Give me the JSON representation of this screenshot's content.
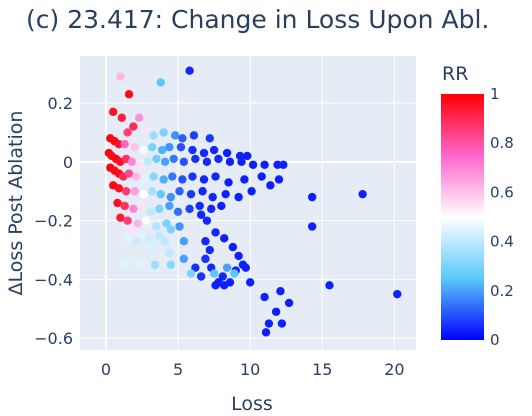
{
  "chart_data": {
    "type": "scatter",
    "title": "(c) 23.417: Change in Loss Upon Abl.",
    "xlabel": "Loss",
    "ylabel": "ΔLoss Post Ablation",
    "xlim": [
      -1.8,
      21.5
    ],
    "ylim": [
      -0.64,
      0.36
    ],
    "xticks": [
      0,
      5,
      10,
      15,
      20
    ],
    "yticks": [
      -0.6,
      -0.4,
      -0.2,
      0,
      0.2
    ],
    "ytick_labels": [
      "−0.6",
      "−0.4",
      "−0.2",
      "0",
      "0.2"
    ],
    "grid": true,
    "colorbar": {
      "title": "RR",
      "range": [
        0,
        1
      ],
      "ticks": [
        0,
        0.2,
        0.4,
        0.6,
        0.8,
        1
      ],
      "tick_labels": [
        "0",
        "0.2",
        "0.4",
        "0.6",
        "0.8",
        "1"
      ],
      "colorscale": [
        "#0000ff",
        "#5ac8fa",
        "#ffffff",
        "#ff66cc",
        "#ff0000"
      ]
    },
    "points": [
      [
        5.8,
        0.31,
        0.05
      ],
      [
        1.0,
        0.29,
        0.62
      ],
      [
        3.8,
        0.27,
        0.25
      ],
      [
        1.6,
        0.23,
        0.97
      ],
      [
        0.5,
        0.17,
        0.96
      ],
      [
        1.1,
        0.15,
        0.92
      ],
      [
        2.3,
        0.15,
        0.68
      ],
      [
        1.9,
        0.12,
        0.9
      ],
      [
        1.5,
        0.1,
        0.85
      ],
      [
        2.8,
        0.11,
        0.55
      ],
      [
        3.3,
        0.09,
        0.35
      ],
      [
        4.0,
        0.1,
        0.3
      ],
      [
        4.8,
        0.09,
        0.18
      ],
      [
        5.3,
        0.08,
        0.12
      ],
      [
        6.1,
        0.09,
        0.08
      ],
      [
        7.2,
        0.08,
        0.07
      ],
      [
        0.3,
        0.08,
        0.99
      ],
      [
        0.6,
        0.07,
        0.98
      ],
      [
        0.9,
        0.06,
        0.95
      ],
      [
        1.3,
        0.06,
        0.75
      ],
      [
        2.0,
        0.05,
        0.6
      ],
      [
        2.6,
        0.04,
        0.48
      ],
      [
        3.2,
        0.05,
        0.3
      ],
      [
        3.9,
        0.04,
        0.22
      ],
      [
        4.4,
        0.05,
        0.18
      ],
      [
        5.2,
        0.05,
        0.1
      ],
      [
        6.0,
        0.04,
        0.06
      ],
      [
        6.8,
        0.03,
        0.05
      ],
      [
        7.5,
        0.04,
        0.05
      ],
      [
        8.4,
        0.03,
        0.04
      ],
      [
        9.3,
        0.02,
        0.04
      ],
      [
        9.8,
        0.02,
        0.04
      ],
      [
        0.2,
        0.03,
        0.99
      ],
      [
        0.4,
        0.02,
        0.97
      ],
      [
        0.7,
        0.01,
        0.99
      ],
      [
        1.0,
        0.0,
        0.96
      ],
      [
        1.4,
        0.01,
        0.88
      ],
      [
        1.8,
        0.0,
        0.7
      ],
      [
        2.3,
        -0.01,
        0.55
      ],
      [
        2.9,
        0.0,
        0.4
      ],
      [
        3.5,
        0.01,
        0.28
      ],
      [
        4.1,
        0.0,
        0.2
      ],
      [
        4.7,
        0.01,
        0.15
      ],
      [
        5.4,
        0.0,
        0.1
      ],
      [
        6.2,
        0.01,
        0.06
      ],
      [
        7.0,
        0.0,
        0.05
      ],
      [
        7.8,
        0.01,
        0.05
      ],
      [
        8.6,
        0.0,
        0.04
      ],
      [
        9.4,
        0.0,
        0.04
      ],
      [
        10.2,
        -0.01,
        0.04
      ],
      [
        11.0,
        -0.01,
        0.04
      ],
      [
        11.9,
        -0.01,
        0.04
      ],
      [
        12.3,
        -0.01,
        0.04
      ],
      [
        0.3,
        -0.02,
        0.99
      ],
      [
        0.6,
        -0.03,
        0.98
      ],
      [
        0.9,
        -0.04,
        0.97
      ],
      [
        1.2,
        -0.05,
        0.9
      ],
      [
        1.6,
        -0.04,
        0.82
      ],
      [
        2.1,
        -0.05,
        0.62
      ],
      [
        2.7,
        -0.06,
        0.45
      ],
      [
        3.3,
        -0.05,
        0.32
      ],
      [
        4.0,
        -0.06,
        0.22
      ],
      [
        4.6,
        -0.05,
        0.15
      ],
      [
        5.3,
        -0.06,
        0.1
      ],
      [
        6.0,
        -0.05,
        0.06
      ],
      [
        6.8,
        -0.06,
        0.05
      ],
      [
        7.6,
        -0.05,
        0.05
      ],
      [
        8.5,
        -0.07,
        0.04
      ],
      [
        9.6,
        -0.06,
        0.04
      ],
      [
        10.8,
        -0.05,
        0.04
      ],
      [
        12.0,
        -0.06,
        0.04
      ],
      [
        0.5,
        -0.08,
        0.98
      ],
      [
        0.9,
        -0.09,
        0.96
      ],
      [
        1.4,
        -0.1,
        0.86
      ],
      [
        2.0,
        -0.1,
        0.66
      ],
      [
        2.6,
        -0.11,
        0.5
      ],
      [
        3.2,
        -0.1,
        0.36
      ],
      [
        3.8,
        -0.11,
        0.26
      ],
      [
        4.5,
        -0.12,
        0.18
      ],
      [
        5.1,
        -0.1,
        0.12
      ],
      [
        5.9,
        -0.11,
        0.07
      ],
      [
        6.7,
        -0.1,
        0.05
      ],
      [
        7.4,
        -0.12,
        0.05
      ],
      [
        8.3,
        -0.11,
        0.04
      ],
      [
        9.2,
        -0.12,
        0.04
      ],
      [
        10.1,
        -0.1,
        0.04
      ],
      [
        11.4,
        -0.08,
        0.04
      ],
      [
        0.8,
        -0.14,
        0.96
      ],
      [
        1.3,
        -0.15,
        0.88
      ],
      [
        1.9,
        -0.16,
        0.7
      ],
      [
        2.5,
        -0.15,
        0.55
      ],
      [
        3.1,
        -0.17,
        0.4
      ],
      [
        3.7,
        -0.16,
        0.3
      ],
      [
        4.4,
        -0.15,
        0.2
      ],
      [
        5.0,
        -0.17,
        0.14
      ],
      [
        5.8,
        -0.16,
        0.08
      ],
      [
        6.5,
        -0.15,
        0.05
      ],
      [
        7.3,
        -0.16,
        0.05
      ],
      [
        8.0,
        -0.15,
        0.04
      ],
      [
        1.0,
        -0.19,
        0.94
      ],
      [
        1.5,
        -0.2,
        0.85
      ],
      [
        2.2,
        -0.21,
        0.62
      ],
      [
        2.8,
        -0.2,
        0.5
      ],
      [
        3.5,
        -0.22,
        0.38
      ],
      [
        4.2,
        -0.21,
        0.3
      ],
      [
        5.1,
        -0.22,
        0.18
      ],
      [
        6.6,
        -0.18,
        0.05
      ],
      [
        7.0,
        -0.2,
        0.05
      ],
      [
        1.8,
        -0.24,
        0.55
      ],
      [
        2.4,
        -0.25,
        0.45
      ],
      [
        3.0,
        -0.26,
        0.42
      ],
      [
        3.7,
        -0.25,
        0.4
      ],
      [
        4.5,
        -0.23,
        0.3
      ],
      [
        1.5,
        -0.26,
        0.45
      ],
      [
        2.1,
        -0.27,
        0.42
      ],
      [
        3.3,
        -0.28,
        0.44
      ],
      [
        4.1,
        -0.27,
        0.4
      ],
      [
        5.4,
        -0.27,
        0.2
      ],
      [
        6.9,
        -0.27,
        0.05
      ],
      [
        7.6,
        -0.24,
        0.05
      ],
      [
        8.2,
        -0.26,
        0.04
      ],
      [
        3.0,
        -0.3,
        0.44
      ],
      [
        4.4,
        -0.31,
        0.4
      ],
      [
        7.2,
        -0.3,
        0.05
      ],
      [
        8.8,
        -0.29,
        0.04
      ],
      [
        9.2,
        -0.32,
        0.04
      ],
      [
        5.4,
        -0.33,
        0.2
      ],
      [
        6.9,
        -0.33,
        0.06
      ],
      [
        9.5,
        -0.35,
        0.04
      ],
      [
        1.3,
        -0.34,
        0.45
      ],
      [
        2.3,
        -0.34,
        0.45
      ],
      [
        3.4,
        -0.35,
        0.35
      ],
      [
        4.5,
        -0.35,
        0.32
      ],
      [
        6.2,
        -0.36,
        0.06
      ],
      [
        7.3,
        -0.36,
        0.05
      ],
      [
        8.4,
        -0.36,
        0.2
      ],
      [
        9.0,
        -0.37,
        0.05
      ],
      [
        9.7,
        -0.36,
        0.04
      ],
      [
        5.9,
        -0.38,
        0.3
      ],
      [
        7.5,
        -0.38,
        0.25
      ],
      [
        8.1,
        -0.39,
        0.05
      ],
      [
        8.9,
        -0.38,
        0.25
      ],
      [
        6.6,
        -0.39,
        0.06
      ],
      [
        7.8,
        -0.41,
        0.04
      ],
      [
        8.6,
        -0.41,
        0.04
      ],
      [
        7.6,
        -0.42,
        0.04
      ],
      [
        8.2,
        -0.42,
        0.04
      ],
      [
        10.0,
        -0.41,
        0.04
      ],
      [
        14.3,
        -0.12,
        0.04
      ],
      [
        17.8,
        -0.11,
        0.04
      ],
      [
        14.3,
        -0.22,
        0.04
      ],
      [
        15.5,
        -0.42,
        0.04
      ],
      [
        20.2,
        -0.45,
        0.04
      ],
      [
        12.1,
        -0.44,
        0.04
      ],
      [
        11.0,
        -0.46,
        0.04
      ],
      [
        12.7,
        -0.48,
        0.04
      ],
      [
        11.8,
        -0.51,
        0.04
      ],
      [
        11.3,
        -0.55,
        0.04
      ],
      [
        12.2,
        -0.55,
        0.04
      ],
      [
        11.1,
        -0.58,
        0.04
      ]
    ]
  }
}
